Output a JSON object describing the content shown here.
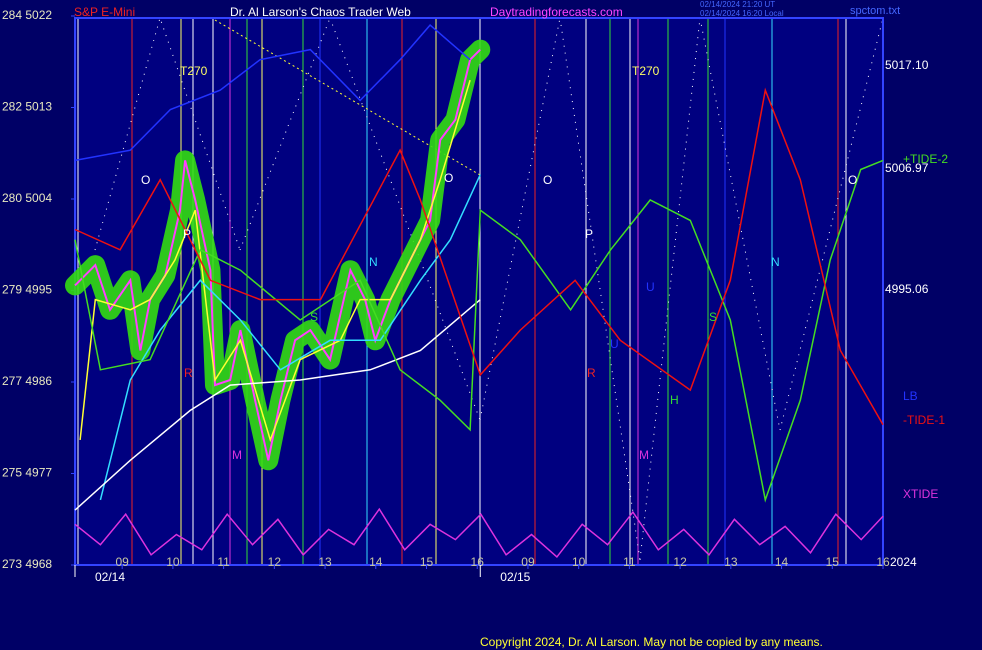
{
  "chart_data": {
    "type": "line",
    "header": {
      "symbol": "S&P E-Mini",
      "title": "Dr. Al Larson's Chaos Trader Web",
      "site": "Daytradingforecasts.com",
      "stamp_ut": "02/14/2024 21:20 UT",
      "stamp_local": "02/14/2024 16:20 Local",
      "file": "spctom.txt"
    },
    "copyright": "Copyright 2024, Dr. Al Larson. May not be copied by any means.",
    "year": "2024",
    "dates": [
      {
        "value": -0.93,
        "label": "02/14"
      },
      {
        "value": 7.06,
        "label": "02/15"
      }
    ],
    "xlim": [
      -0.93,
      15.0
    ],
    "xticks": [
      {
        "value": 0,
        "label": "09"
      },
      {
        "value": 1,
        "label": "10"
      },
      {
        "value": 2,
        "label": "11"
      },
      {
        "value": 3,
        "label": "12"
      },
      {
        "value": 4,
        "label": "13"
      },
      {
        "value": 5,
        "label": "14"
      },
      {
        "value": 6,
        "label": "15"
      },
      {
        "value": 7,
        "label": "16"
      },
      {
        "value": 8,
        "label": "09"
      },
      {
        "value": 9,
        "label": "10"
      },
      {
        "value": 10,
        "label": "11"
      },
      {
        "value": 11,
        "label": "12"
      },
      {
        "value": 12,
        "label": "13"
      },
      {
        "value": 13,
        "label": "14"
      },
      {
        "value": 14,
        "label": "15"
      },
      {
        "value": 15,
        "label": "16"
      }
    ],
    "ylim": [
      4968,
      5022
    ],
    "yticks": [
      {
        "value": 5022,
        "label": "284 5022"
      },
      {
        "value": 5013,
        "label": "282 5013"
      },
      {
        "value": 5004,
        "label": "280 5004"
      },
      {
        "value": 4995,
        "label": "279 4995"
      },
      {
        "value": 4986,
        "label": "277 4986"
      },
      {
        "value": 4977,
        "label": "275 4977"
      },
      {
        "value": 4968,
        "label": "273 4968"
      }
    ],
    "right_labels": [
      {
        "value": 5017.1,
        "label": "5017.10"
      },
      {
        "value": 5006.97,
        "label": "5006.97"
      },
      {
        "value": 4995.06,
        "label": "4995.06"
      }
    ],
    "annotations": [
      "T270",
      "T270",
      "O",
      "O",
      "O",
      "O",
      "P",
      "P",
      "R",
      "R",
      "M",
      "M",
      "N",
      "N",
      "S",
      "S",
      "H",
      "U",
      "U"
    ],
    "series": [
      {
        "color": "#ff40ff",
        "glow": "#33dd11",
        "x": [
          -0.93,
          -0.53,
          -0.24,
          0.16,
          0.36,
          0.55,
          0.85,
          1.14,
          1.24,
          1.44,
          1.74,
          1.83,
          2.13,
          2.33,
          2.62,
          2.88,
          3.12,
          3.41,
          3.71,
          4.1,
          4.5,
          4.79,
          4.99,
          5.29,
          5.68,
          6.07,
          6.27,
          6.57,
          6.86,
          7.06
        ],
        "values": [
          4995.5,
          4997.5,
          4993.1,
          4996.0,
          4989.1,
          4994.1,
          4996.5,
          5002.9,
          5007.8,
          5003.9,
          4997.0,
          4985.7,
          4986.2,
          4991.1,
          4984.2,
          4978.3,
          4984.2,
          4990.1,
          4991.1,
          4988.2,
          4997.0,
          4994.1,
          4990.1,
          4994.1,
          4998.0,
          5001.9,
          5009.8,
          5011.8,
          5017.7,
          5018.7
        ]
      },
      {
        "color": "#ffff33",
        "x": [
          -0.83,
          -0.53,
          0.16,
          0.55,
          1.04,
          1.44,
          1.83,
          2.33,
          2.92,
          3.51,
          4.3,
          4.69,
          5.29,
          5.88,
          6.27,
          6.86
        ],
        "values": [
          4980.3,
          4994.1,
          4993.1,
          4994.1,
          4998.0,
          5002.9,
          4986.2,
          4990.1,
          4980.3,
          4988.2,
          4990.1,
          4994.1,
          4994.1,
          5000.0,
          5005.9,
          5015.7
        ]
      },
      {
        "color": "#33ddff",
        "x": [
          -0.43,
          0.16,
          0.75,
          1.54,
          2.33,
          3.12,
          4.1,
          5.09,
          5.88,
          6.47,
          7.06
        ],
        "values": [
          4974.4,
          4986.2,
          4991.1,
          4996.0,
          4992.1,
          4987.2,
          4990.1,
          4990.1,
          4996.0,
          5000.0,
          5006.4
        ]
      },
      {
        "color": "#ffffff",
        "x": [
          -0.93,
          0.16,
          1.34,
          2.13,
          3.51,
          4.89,
          5.88,
          7.06
        ],
        "values": [
          4973.4,
          4978.3,
          4983.2,
          4985.7,
          4986.2,
          4987.2,
          4989.1,
          4994.1
        ]
      },
      {
        "name": "+TIDE-2",
        "color": "#44dd22",
        "x": [
          -0.93,
          -0.43,
          0.55,
          1.54,
          2.33,
          3.51,
          4.69,
          5.48,
          6.27,
          6.86,
          7.06,
          7.85,
          8.84,
          9.63,
          10.41,
          11.2,
          11.99,
          12.68,
          13.37,
          13.96,
          14.56,
          15.0
        ],
        "values": [
          5000.0,
          4987.2,
          4988.2,
          4999.0,
          4997.0,
          4992.1,
          4996.0,
          4987.2,
          4984.2,
          4981.3,
          5002.9,
          5000.0,
          4993.1,
          4999.0,
          5003.9,
          5001.9,
          4992.1,
          4974.4,
          4984.2,
          4998.0,
          5006.9,
          5007.8
        ]
      },
      {
        "name": "-TIDE-1",
        "color": "#ee1111",
        "x": [
          -0.93,
          -0.04,
          0.75,
          1.74,
          2.72,
          3.91,
          5.48,
          5.88,
          7.06,
          7.85,
          8.93,
          9.82,
          11.2,
          11.99,
          12.68,
          13.37,
          14.16,
          15.0
        ],
        "values": [
          5001.0,
          4999.0,
          5005.9,
          4996.0,
          4994.1,
          4994.1,
          5008.8,
          5003.9,
          4986.7,
          4991.1,
          4996.0,
          4990.1,
          4985.2,
          4996.0,
          5014.7,
          5005.9,
          4989.1,
          4981.8
        ]
      },
      {
        "name": "LB",
        "color": "#2233ff",
        "x": [
          -0.93,
          0.16,
          0.95,
          1.93,
          2.72,
          3.71,
          4.69,
          5.48,
          6.07,
          6.86
        ],
        "values": [
          5007.8,
          5008.8,
          5012.8,
          5014.7,
          5017.7,
          5018.7,
          5013.7,
          5017.7,
          5021.1,
          5017.7
        ]
      },
      {
        "name": "XTIDE",
        "color": "#dd33dd",
        "x": [
          -0.93,
          -0.43,
          0.07,
          0.57,
          1.07,
          1.57,
          2.07,
          2.57,
          3.07,
          3.57,
          4.07,
          4.57,
          5.07,
          5.57,
          6.07,
          6.57,
          7.07,
          7.57,
          8.07,
          8.57,
          9.07,
          9.57,
          10.07,
          10.57,
          11.07,
          11.57,
          12.07,
          12.57,
          13.07,
          13.57,
          14.07,
          14.57,
          15.0
        ],
        "values": [
          4972,
          4970,
          4973,
          4969,
          4971,
          4969.5,
          4973,
          4970,
          4972.5,
          4969,
          4971.5,
          4970,
          4973.5,
          4969.5,
          4972,
          4970.5,
          4973,
          4969,
          4971,
          4968.8,
          4972,
          4970,
          4973.2,
          4969.5,
          4971.5,
          4969,
          4972.5,
          4970,
          4971.8,
          4969.2,
          4973,
          4970.5,
          4972.8
        ]
      }
    ]
  }
}
